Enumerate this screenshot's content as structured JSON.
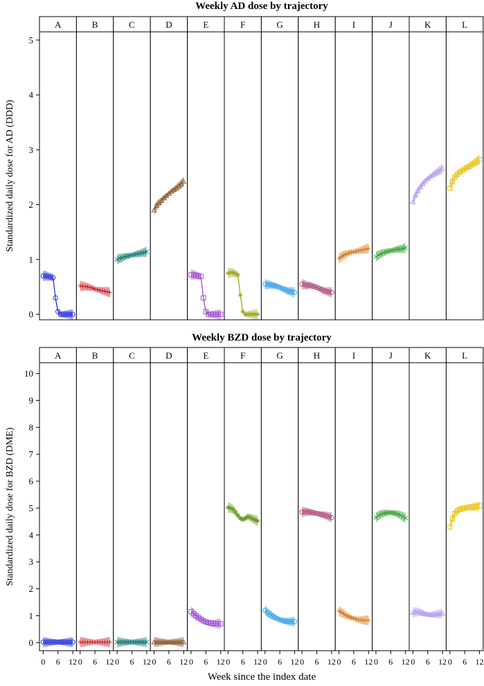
{
  "figure": {
    "xlabel": "Week since the index date"
  },
  "chart_data": [
    {
      "type": "line",
      "title": "Weekly AD dose by trajectory",
      "ylabel": "Standardized daily dose for AD (DDD)",
      "xlabel": "Week since the index date",
      "ylim": [
        -0.1,
        5.15
      ],
      "yticks": [
        0,
        1,
        2,
        3,
        4,
        5
      ],
      "xlim": [
        -1.5,
        13.5
      ],
      "xticks": [
        0,
        6,
        12
      ],
      "x": [
        0,
        1,
        2,
        3,
        4,
        5,
        6,
        7,
        8,
        9,
        10,
        11,
        12
      ],
      "series": [
        {
          "panel": "A",
          "color": "#2a35d4",
          "marker": "circle",
          "values": [
            0.7,
            0.7,
            0.69,
            0.68,
            0.67,
            0.3,
            0.05,
            0.0,
            0.0,
            0.0,
            0.0,
            0.0,
            0.0
          ]
        },
        {
          "panel": "B",
          "color": "#c8242c",
          "marker": "plus",
          "values": [
            0.52,
            0.51,
            0.51,
            0.5,
            0.49,
            0.48,
            0.46,
            0.45,
            0.44,
            0.43,
            0.42,
            0.41,
            0.4
          ]
        },
        {
          "panel": "C",
          "color": "#1f7f7a",
          "marker": "x",
          "values": [
            1.0,
            1.02,
            1.03,
            1.05,
            1.06,
            1.07,
            1.08,
            1.09,
            1.1,
            1.11,
            1.12,
            1.13,
            1.14
          ]
        },
        {
          "panel": "D",
          "color": "#8a5a2b",
          "marker": "triangle",
          "values": [
            1.9,
            1.98,
            2.03,
            2.07,
            2.12,
            2.16,
            2.2,
            2.24,
            2.27,
            2.3,
            2.34,
            2.38,
            2.42
          ]
        },
        {
          "panel": "E",
          "color": "#a24fd6",
          "marker": "square",
          "values": [
            0.72,
            0.72,
            0.71,
            0.7,
            0.69,
            0.3,
            0.05,
            0.0,
            0.0,
            0.0,
            0.0,
            0.0,
            0.0
          ]
        },
        {
          "panel": "F",
          "color": "#a4a822",
          "marker": "star",
          "values": [
            0.75,
            0.76,
            0.76,
            0.74,
            0.72,
            0.35,
            0.05,
            0.0,
            0.0,
            0.0,
            0.0,
            0.0,
            0.0
          ]
        },
        {
          "panel": "G",
          "color": "#3aa0e6",
          "marker": "circle",
          "values": [
            0.55,
            0.54,
            0.54,
            0.53,
            0.52,
            0.51,
            0.49,
            0.47,
            0.45,
            0.43,
            0.42,
            0.41,
            0.4
          ]
        },
        {
          "panel": "H",
          "color": "#b04f7e",
          "marker": "circle",
          "values": [
            0.55,
            0.54,
            0.53,
            0.53,
            0.52,
            0.51,
            0.49,
            0.47,
            0.45,
            0.43,
            0.42,
            0.41,
            0.4
          ]
        },
        {
          "panel": "I",
          "color": "#d77a1e",
          "marker": "plus",
          "values": [
            1.02,
            1.05,
            1.08,
            1.1,
            1.12,
            1.13,
            1.14,
            1.15,
            1.16,
            1.17,
            1.18,
            1.19,
            1.2
          ]
        },
        {
          "panel": "J",
          "color": "#3fa63a",
          "marker": "x",
          "values": [
            1.05,
            1.08,
            1.1,
            1.12,
            1.14,
            1.15,
            1.16,
            1.17,
            1.18,
            1.19,
            1.19,
            1.2,
            1.21
          ]
        },
        {
          "panel": "K",
          "color": "#b59cf0",
          "marker": "triangle",
          "values": [
            2.05,
            2.17,
            2.25,
            2.32,
            2.38,
            2.43,
            2.47,
            2.51,
            2.54,
            2.57,
            2.6,
            2.63,
            2.66
          ]
        },
        {
          "panel": "L",
          "color": "#e8c31a",
          "marker": "square",
          "values": [
            2.3,
            2.42,
            2.5,
            2.55,
            2.59,
            2.62,
            2.65,
            2.68,
            2.7,
            2.73,
            2.76,
            2.79,
            2.82
          ]
        }
      ]
    },
    {
      "type": "line",
      "title": "Weekly BZD dose by trajectory",
      "ylabel": "Standardized daily dose for BZD (DME)",
      "xlabel": "Week since the index date",
      "ylim": [
        -0.3,
        10.4
      ],
      "yticks": [
        0,
        1,
        2,
        3,
        4,
        5,
        6,
        7,
        8,
        9,
        10
      ],
      "xlim": [
        -1.5,
        13.5
      ],
      "xticks": [
        0,
        6,
        12
      ],
      "x": [
        0,
        1,
        2,
        3,
        4,
        5,
        6,
        7,
        8,
        9,
        10,
        11,
        12
      ],
      "series": [
        {
          "panel": "A",
          "color": "#2a35d4",
          "marker": "circle",
          "values": [
            0.02,
            0.02,
            0.02,
            0.02,
            0.02,
            0.02,
            0.02,
            0.02,
            0.02,
            0.02,
            0.02,
            0.02,
            0.02
          ]
        },
        {
          "panel": "B",
          "color": "#c8242c",
          "marker": "plus",
          "values": [
            0.02,
            0.02,
            0.02,
            0.02,
            0.02,
            0.02,
            0.02,
            0.02,
            0.02,
            0.02,
            0.02,
            0.02,
            0.02
          ]
        },
        {
          "panel": "C",
          "color": "#1f7f7a",
          "marker": "x",
          "values": [
            0.02,
            0.02,
            0.02,
            0.02,
            0.02,
            0.02,
            0.02,
            0.02,
            0.02,
            0.02,
            0.02,
            0.02,
            0.02
          ]
        },
        {
          "panel": "D",
          "color": "#8a5a2b",
          "marker": "triangle",
          "values": [
            0.02,
            0.02,
            0.02,
            0.02,
            0.02,
            0.02,
            0.02,
            0.02,
            0.02,
            0.02,
            0.02,
            0.02,
            0.02
          ]
        },
        {
          "panel": "E",
          "color": "#a24fd6",
          "marker": "square",
          "values": [
            1.15,
            1.08,
            1.0,
            0.93,
            0.87,
            0.81,
            0.77,
            0.74,
            0.72,
            0.71,
            0.7,
            0.7,
            0.7
          ]
        },
        {
          "panel": "F",
          "color": "#6b9a26",
          "marker": "star",
          "values": [
            5.02,
            5.0,
            4.95,
            4.85,
            4.72,
            4.62,
            4.58,
            4.62,
            4.68,
            4.65,
            4.6,
            4.56,
            4.52
          ]
        },
        {
          "panel": "G",
          "color": "#3aa0e6",
          "marker": "circle",
          "values": [
            1.2,
            1.12,
            1.05,
            0.99,
            0.94,
            0.89,
            0.85,
            0.82,
            0.8,
            0.79,
            0.78,
            0.78,
            0.78
          ]
        },
        {
          "panel": "H",
          "color": "#b04f7e",
          "marker": "circle",
          "values": [
            4.85,
            4.86,
            4.86,
            4.85,
            4.84,
            4.82,
            4.8,
            4.78,
            4.76,
            4.74,
            4.71,
            4.68,
            4.65
          ]
        },
        {
          "panel": "I",
          "color": "#d77a1e",
          "marker": "plus",
          "values": [
            1.18,
            1.12,
            1.06,
            1.01,
            0.97,
            0.93,
            0.9,
            0.87,
            0.85,
            0.84,
            0.83,
            0.83,
            0.83
          ]
        },
        {
          "panel": "J",
          "color": "#3fa63a",
          "marker": "x",
          "values": [
            4.65,
            4.72,
            4.77,
            4.8,
            4.82,
            4.83,
            4.83,
            4.82,
            4.8,
            4.77,
            4.73,
            4.68,
            4.63
          ]
        },
        {
          "panel": "K",
          "color": "#b59cf0",
          "marker": "triangle",
          "values": [
            1.12,
            1.14,
            1.14,
            1.13,
            1.1,
            1.07,
            1.05,
            1.04,
            1.04,
            1.05,
            1.06,
            1.07,
            1.08
          ]
        },
        {
          "panel": "L",
          "color": "#e8c31a",
          "marker": "square",
          "values": [
            4.3,
            4.6,
            4.8,
            4.9,
            4.95,
            4.98,
            5.0,
            5.02,
            5.03,
            5.04,
            5.05,
            5.06,
            5.08
          ]
        }
      ]
    }
  ]
}
